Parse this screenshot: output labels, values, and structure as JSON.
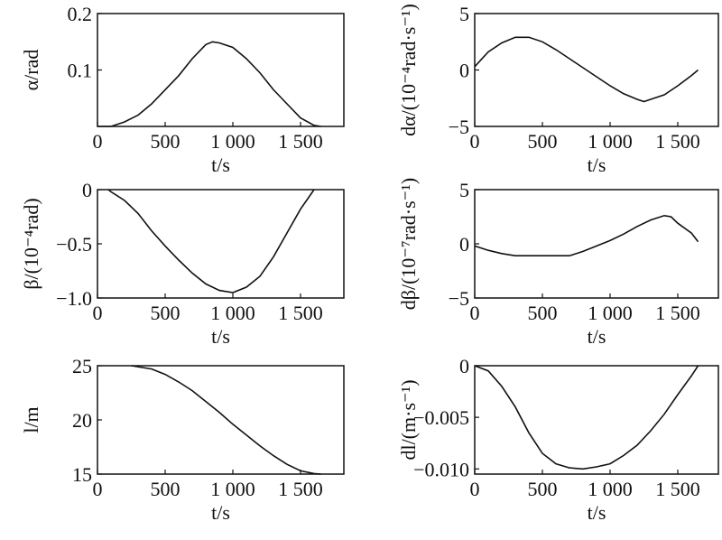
{
  "chart_data": [
    {
      "type": "line",
      "ylabel": "α/rad",
      "xlabel": "t/s",
      "xlim": [
        0,
        1820
      ],
      "ylim": [
        0,
        0.2
      ],
      "xticks": [
        0,
        500,
        1000,
        1500
      ],
      "xtick_labels": [
        "0",
        "500",
        "1 000",
        "1 500"
      ],
      "yticks": [
        0.1,
        0.2
      ],
      "ytick_labels": [
        "0.1",
        "0.2"
      ],
      "x": [
        0,
        100,
        200,
        300,
        400,
        500,
        600,
        700,
        800,
        850,
        900,
        1000,
        1100,
        1200,
        1300,
        1400,
        1500,
        1600,
        1650
      ],
      "y": [
        0,
        0,
        0.008,
        0.02,
        0.04,
        0.065,
        0.09,
        0.12,
        0.145,
        0.15,
        0.148,
        0.14,
        0.12,
        0.095,
        0.065,
        0.04,
        0.015,
        0.002,
        0
      ]
    },
    {
      "type": "line",
      "ylabel": "dα/(10⁻⁴rad·s⁻¹)",
      "xlabel": "t/s",
      "xlim": [
        0,
        1800
      ],
      "ylim": [
        -5,
        5
      ],
      "xticks": [
        0,
        500,
        1000,
        1500
      ],
      "xtick_labels": [
        "0",
        "500",
        "1 000",
        "1 500"
      ],
      "yticks": [
        -5,
        0,
        5
      ],
      "ytick_labels": [
        "−5",
        "0",
        "5"
      ],
      "x": [
        0,
        100,
        200,
        300,
        400,
        500,
        600,
        700,
        800,
        900,
        1000,
        1100,
        1200,
        1250,
        1300,
        1400,
        1500,
        1600,
        1650
      ],
      "y": [
        0.3,
        1.6,
        2.4,
        2.9,
        2.9,
        2.5,
        1.8,
        1.0,
        0.2,
        -0.6,
        -1.4,
        -2.1,
        -2.6,
        -2.8,
        -2.6,
        -2.2,
        -1.4,
        -0.5,
        0
      ]
    },
    {
      "type": "line",
      "ylabel": "β/(10⁻⁴rad)",
      "xlabel": "t/s",
      "xlim": [
        0,
        1820
      ],
      "ylim": [
        -1,
        0
      ],
      "xticks": [
        0,
        500,
        1000,
        1500
      ],
      "xtick_labels": [
        "0",
        "500",
        "1 000",
        "1 500"
      ],
      "yticks": [
        -1,
        -0.5,
        0
      ],
      "ytick_labels": [
        "−1.0",
        "−0.5",
        "0"
      ],
      "x": [
        80,
        100,
        200,
        300,
        400,
        500,
        600,
        700,
        800,
        900,
        1000,
        1100,
        1200,
        1300,
        1400,
        1500,
        1600
      ],
      "y": [
        0,
        -0.02,
        -0.1,
        -0.22,
        -0.38,
        -0.52,
        -0.65,
        -0.77,
        -0.87,
        -0.93,
        -0.95,
        -0.9,
        -0.8,
        -0.62,
        -0.4,
        -0.18,
        0
      ]
    },
    {
      "type": "line",
      "ylabel": "dβ/(10⁻⁷rad·s⁻¹)",
      "xlabel": "t/s",
      "xlim": [
        0,
        1800
      ],
      "ylim": [
        -5,
        5
      ],
      "xticks": [
        0,
        500,
        1000,
        1500
      ],
      "xtick_labels": [
        "0",
        "500",
        "1 000",
        "1 500"
      ],
      "yticks": [
        -5,
        0,
        5
      ],
      "ytick_labels": [
        "−5",
        "0",
        "5"
      ],
      "x": [
        0,
        100,
        200,
        300,
        400,
        500,
        600,
        700,
        800,
        900,
        1000,
        1100,
        1200,
        1300,
        1400,
        1450,
        1500,
        1600,
        1650
      ],
      "y": [
        -0.2,
        -0.6,
        -0.9,
        -1.1,
        -1.1,
        -1.1,
        -1.1,
        -1.1,
        -0.7,
        -0.2,
        0.3,
        0.9,
        1.6,
        2.2,
        2.6,
        2.5,
        1.9,
        1.0,
        0.2
      ]
    },
    {
      "type": "line",
      "ylabel": "l/m",
      "xlabel": "t/s",
      "xlim": [
        0,
        1820
      ],
      "ylim": [
        15,
        25
      ],
      "xticks": [
        0,
        500,
        1000,
        1500
      ],
      "xtick_labels": [
        "0",
        "500",
        "1 000",
        "1 500"
      ],
      "yticks": [
        15,
        20,
        25
      ],
      "ytick_labels": [
        "15",
        "20",
        "25"
      ],
      "x": [
        250,
        400,
        500,
        600,
        700,
        800,
        900,
        1000,
        1100,
        1200,
        1300,
        1400,
        1500,
        1600,
        1650
      ],
      "y": [
        25,
        24.7,
        24.2,
        23.5,
        22.7,
        21.7,
        20.7,
        19.6,
        18.6,
        17.6,
        16.7,
        15.9,
        15.3,
        15.05,
        15
      ]
    },
    {
      "type": "line",
      "ylabel": "dl/(m·s⁻¹)",
      "xlabel": "t/s",
      "xlim": [
        0,
        1800
      ],
      "ylim": [
        -0.0105,
        0
      ],
      "xticks": [
        0,
        500,
        1000,
        1500
      ],
      "xtick_labels": [
        "0",
        "500",
        "1 000",
        "1 500"
      ],
      "yticks": [
        -0.01,
        -0.005,
        0
      ],
      "ytick_labels": [
        "−0.010",
        "−0.005",
        "0"
      ],
      "x": [
        0,
        100,
        200,
        300,
        400,
        500,
        600,
        700,
        800,
        900,
        1000,
        1100,
        1200,
        1300,
        1400,
        1500,
        1600,
        1650
      ],
      "y": [
        0,
        -0.0005,
        -0.002,
        -0.004,
        -0.0065,
        -0.0085,
        -0.0095,
        -0.0099,
        -0.01,
        -0.0098,
        -0.0095,
        -0.0087,
        -0.0077,
        -0.0063,
        -0.0047,
        -0.0028,
        -0.001,
        0
      ]
    }
  ]
}
